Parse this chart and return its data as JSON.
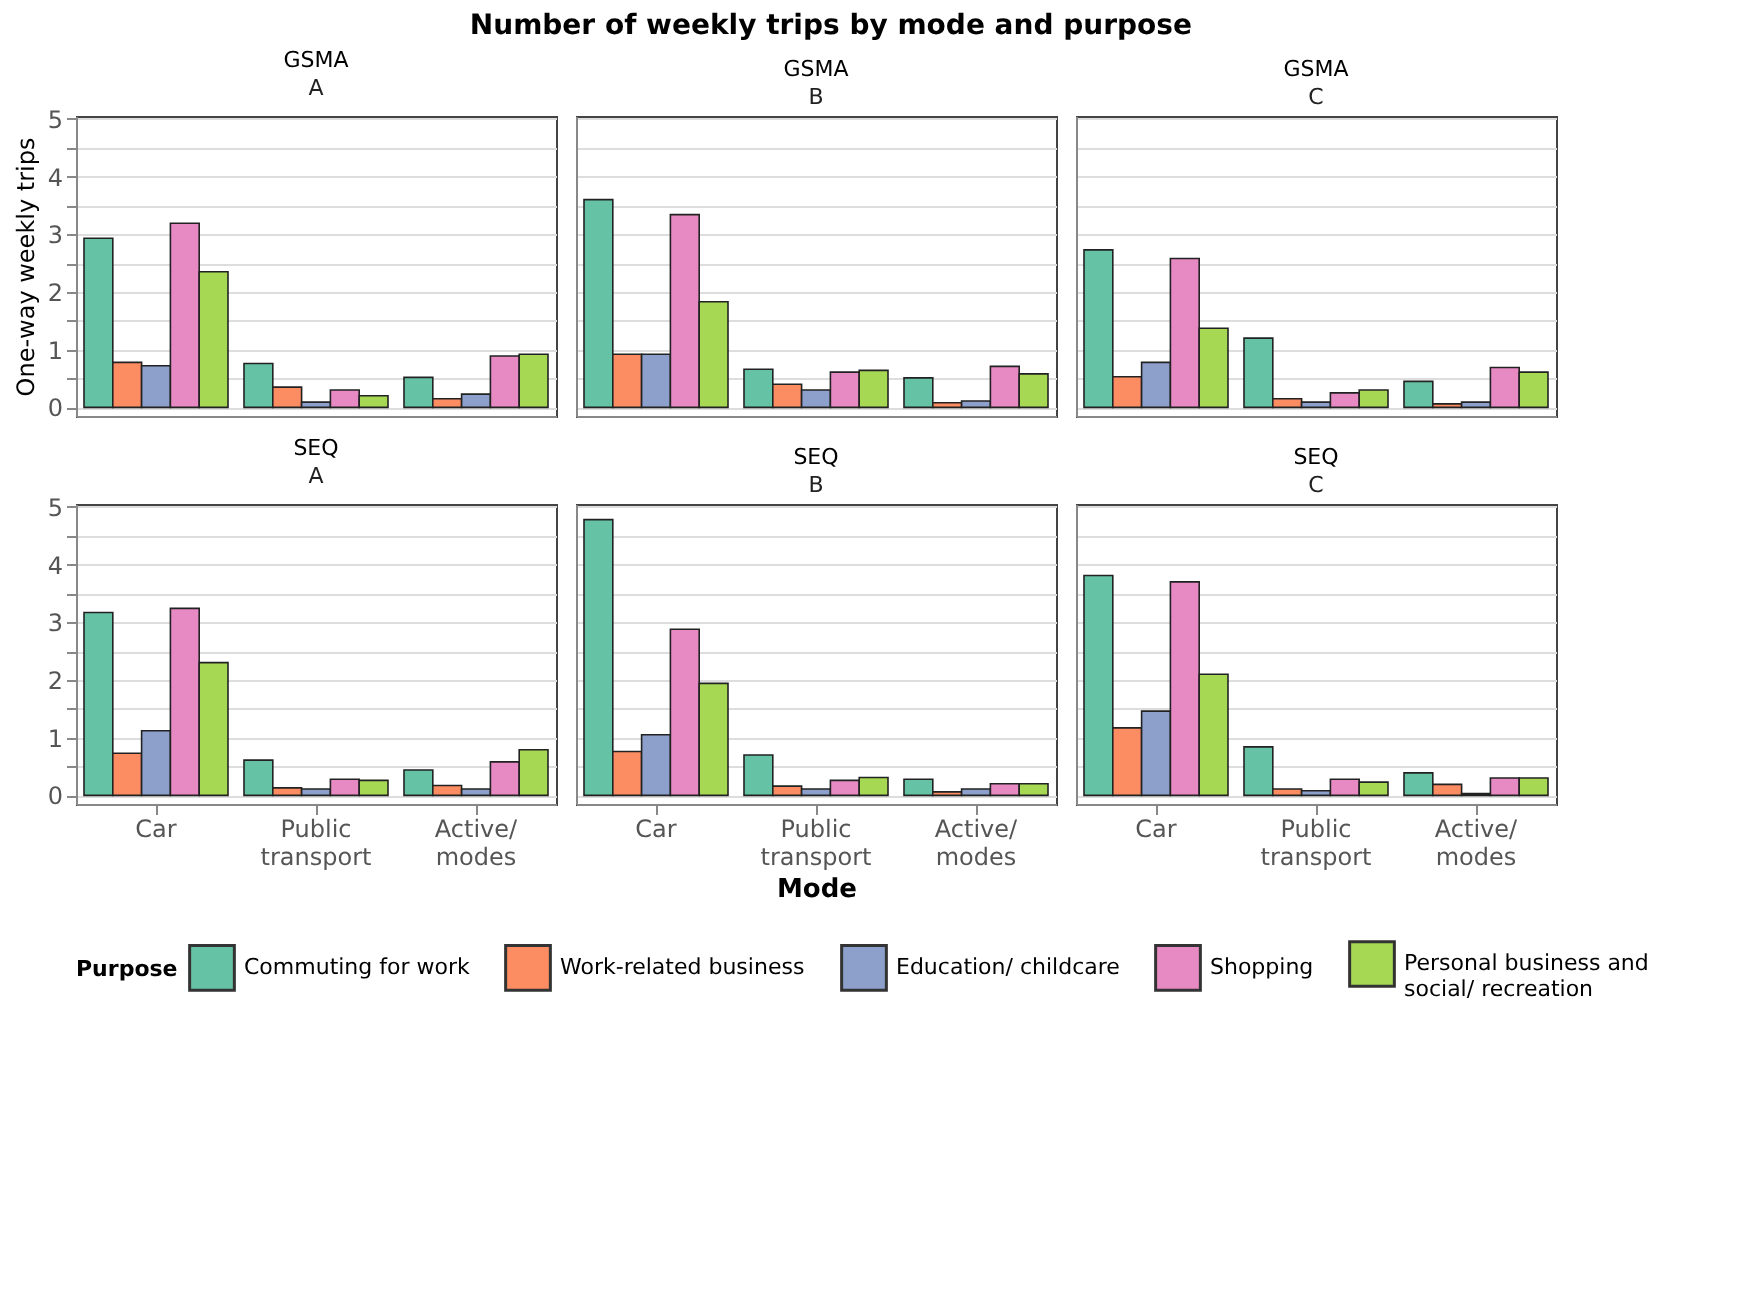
{
  "chart_data": [
    {
      "type": "bar",
      "title": "GSMA",
      "subtitle": "A",
      "annotations": [
        "Number of weekly trips by mode and purpose"
      ],
      "ylabel": "One-way weekly trips",
      "legend_title": "Purpose",
      "legend": "bottom",
      "grid": "y",
      "tick_labels": "y",
      "categories": [
        "Car",
        "Public transport",
        "Active/ modes"
      ],
      "ylim": [
        -0.15,
        5.05
      ],
      "yticks": [
        0,
        {
          "value": 0.5,
          "label": null
        },
        1,
        {
          "value": 1.5,
          "label": null
        },
        2,
        {
          "value": 2.5,
          "label": null
        },
        3,
        {
          "value": 3.5,
          "label": null
        },
        4,
        {
          "value": 4.5,
          "label": null
        },
        5
      ],
      "series": [
        {
          "name": "Commuting for work",
          "color": "#66c2a5",
          "values": [
            2.93,
            0.76,
            0.52
          ]
        },
        {
          "name": "Work-related business",
          "color": "#fc8d62",
          "values": [
            0.78,
            0.35,
            0.15
          ]
        },
        {
          "name": "Education/ childcare",
          "color": "#8da0cb",
          "values": [
            0.72,
            0.09,
            0.23
          ]
        },
        {
          "name": "Shopping",
          "color": "#e78ac3",
          "values": [
            3.19,
            0.3,
            0.89
          ]
        },
        {
          "name": "Personal business and social/ recreation",
          "color": "#a6d854",
          "values": [
            2.35,
            0.2,
            0.92
          ]
        }
      ]
    },
    {
      "type": "bar",
      "title": "GSMA",
      "subtitle": "B",
      "grid": "y",
      "tick_labels": false,
      "categories": [
        "Car",
        "Public transport",
        "Active/ modes"
      ],
      "ylim": [
        -0.15,
        5.05
      ],
      "yticks": [
        0,
        {
          "value": 0.5,
          "label": null
        },
        1,
        {
          "value": 1.5,
          "label": null
        },
        2,
        {
          "value": 2.5,
          "label": null
        },
        3,
        {
          "value": 3.5,
          "label": null
        },
        4,
        {
          "value": 4.5,
          "label": null
        },
        5
      ],
      "series": [
        {
          "name": "Commuting for work",
          "color": "#66c2a5",
          "values": [
            3.6,
            0.66,
            0.51
          ]
        },
        {
          "name": "Work-related business",
          "color": "#fc8d62",
          "values": [
            0.92,
            0.4,
            0.08
          ]
        },
        {
          "name": "Education/ childcare",
          "color": "#8da0cb",
          "values": [
            0.92,
            0.3,
            0.11
          ]
        },
        {
          "name": "Shopping",
          "color": "#e78ac3",
          "values": [
            3.34,
            0.61,
            0.71
          ]
        },
        {
          "name": "Personal business and social/ recreation",
          "color": "#a6d854",
          "values": [
            1.83,
            0.64,
            0.58
          ]
        }
      ]
    },
    {
      "type": "bar",
      "title": "GSMA",
      "subtitle": "C",
      "grid": "y",
      "tick_labels": false,
      "categories": [
        "Car",
        "Public transport",
        "Active/ modes"
      ],
      "ylim": [
        -0.15,
        5.05
      ],
      "yticks": [
        0,
        {
          "value": 0.5,
          "label": null
        },
        1,
        {
          "value": 1.5,
          "label": null
        },
        2,
        {
          "value": 2.5,
          "label": null
        },
        3,
        {
          "value": 3.5,
          "label": null
        },
        4,
        {
          "value": 4.5,
          "label": null
        },
        5
      ],
      "series": [
        {
          "name": "Commuting for work",
          "color": "#66c2a5",
          "values": [
            2.73,
            1.2,
            0.45
          ]
        },
        {
          "name": "Work-related business",
          "color": "#fc8d62",
          "values": [
            0.53,
            0.15,
            0.06
          ]
        },
        {
          "name": "Education/ childcare",
          "color": "#8da0cb",
          "values": [
            0.78,
            0.09,
            0.09
          ]
        },
        {
          "name": "Shopping",
          "color": "#e78ac3",
          "values": [
            2.58,
            0.25,
            0.69
          ]
        },
        {
          "name": "Personal business and social/ recreation",
          "color": "#a6d854",
          "values": [
            1.37,
            0.3,
            0.61
          ]
        }
      ]
    },
    {
      "type": "bar",
      "title": "SEQ",
      "subtitle": "A",
      "grid": "y",
      "categories": [
        "Car",
        "Public transport",
        "Active/ modes"
      ],
      "ylim": [
        -0.15,
        5.05
      ],
      "yticks": [
        0,
        {
          "value": 0.5,
          "label": null
        },
        1,
        {
          "value": 1.5,
          "label": null
        },
        2,
        {
          "value": 2.5,
          "label": null
        },
        3,
        {
          "value": 3.5,
          "label": null
        },
        4,
        {
          "value": 4.5,
          "label": null
        },
        5
      ],
      "series": [
        {
          "name": "Commuting for work",
          "color": "#66c2a5",
          "values": [
            3.17,
            0.61,
            0.44
          ]
        },
        {
          "name": "Work-related business",
          "color": "#fc8d62",
          "values": [
            0.73,
            0.13,
            0.17
          ]
        },
        {
          "name": "Education/ childcare",
          "color": "#8da0cb",
          "values": [
            1.12,
            0.11,
            0.11
          ]
        },
        {
          "name": "Shopping",
          "color": "#e78ac3",
          "values": [
            3.24,
            0.28,
            0.58
          ]
        },
        {
          "name": "Personal business and social/ recreation",
          "color": "#a6d854",
          "values": [
            2.3,
            0.26,
            0.79
          ]
        }
      ]
    },
    {
      "type": "bar",
      "title": "SEQ",
      "subtitle": "B",
      "xlabel": "Mode",
      "grid": "y",
      "tick_labels": "x",
      "categories": [
        "Car",
        "Public transport",
        "Active/ modes"
      ],
      "ylim": [
        -0.15,
        5.05
      ],
      "yticks": [
        0,
        {
          "value": 0.5,
          "label": null
        },
        1,
        {
          "value": 1.5,
          "label": null
        },
        2,
        {
          "value": 2.5,
          "label": null
        },
        3,
        {
          "value": 3.5,
          "label": null
        },
        4,
        {
          "value": 4.5,
          "label": null
        },
        5
      ],
      "series": [
        {
          "name": "Commuting for work",
          "color": "#66c2a5",
          "values": [
            4.78,
            0.7,
            0.28
          ]
        },
        {
          "name": "Work-related business",
          "color": "#fc8d62",
          "values": [
            0.76,
            0.16,
            0.06
          ]
        },
        {
          "name": "Education/ childcare",
          "color": "#8da0cb",
          "values": [
            1.05,
            0.11,
            0.11
          ]
        },
        {
          "name": "Shopping",
          "color": "#e78ac3",
          "values": [
            2.88,
            0.26,
            0.2
          ]
        },
        {
          "name": "Personal business and social/ recreation",
          "color": "#a6d854",
          "values": [
            1.94,
            0.31,
            0.2
          ]
        }
      ]
    },
    {
      "type": "bar",
      "title": "SEQ",
      "subtitle": "C",
      "grid": "y",
      "tick_labels": "x",
      "categories": [
        "Car",
        "Public transport",
        "Active/ modes"
      ],
      "ylim": [
        -0.15,
        5.05
      ],
      "yticks": [
        0,
        {
          "value": 0.5,
          "label": null
        },
        1,
        {
          "value": 1.5,
          "label": null
        },
        2,
        {
          "value": 2.5,
          "label": null
        },
        3,
        {
          "value": 3.5,
          "label": null
        },
        4,
        {
          "value": 4.5,
          "label": null
        },
        5
      ],
      "series": [
        {
          "name": "Commuting for work",
          "color": "#66c2a5",
          "values": [
            3.81,
            0.84,
            0.39
          ]
        },
        {
          "name": "Work-related business",
          "color": "#fc8d62",
          "values": [
            1.17,
            0.11,
            0.19
          ]
        },
        {
          "name": "Education/ childcare",
          "color": "#8da0cb",
          "values": [
            1.46,
            0.08,
            0.03
          ]
        },
        {
          "name": "Shopping",
          "color": "#e78ac3",
          "values": [
            3.7,
            0.28,
            0.3
          ]
        },
        {
          "name": "Personal business and social/ recreation",
          "color": "#a6d854",
          "values": [
            2.1,
            0.23,
            0.3
          ]
        }
      ]
    }
  ]
}
